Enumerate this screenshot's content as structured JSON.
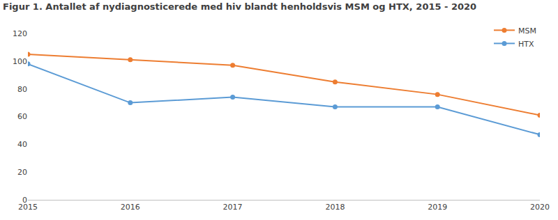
{
  "chart_data": {
    "type": "line",
    "title": "Figur 1. Antallet af nydiagnosticerede med hiv blandt henholdsvis MSM og HTX, 2015 - 2020",
    "x": [
      2015,
      2016,
      2017,
      2018,
      2019,
      2020
    ],
    "series": [
      {
        "name": "MSM",
        "color": "#ed7d31",
        "values": [
          105,
          101,
          97,
          85,
          76,
          61
        ]
      },
      {
        "name": "HTX",
        "color": "#5b9bd5",
        "values": [
          98,
          70,
          74,
          67,
          67,
          47
        ]
      }
    ],
    "xlim": [
      2015,
      2020
    ],
    "xticks": [
      2015,
      2016,
      2017,
      2018,
      2019,
      2020
    ],
    "ylim": [
      0,
      120
    ],
    "yticks": [
      0,
      20,
      40,
      60,
      80,
      100,
      120
    ],
    "grid": false,
    "legend": "upper right",
    "marker": "circle"
  }
}
